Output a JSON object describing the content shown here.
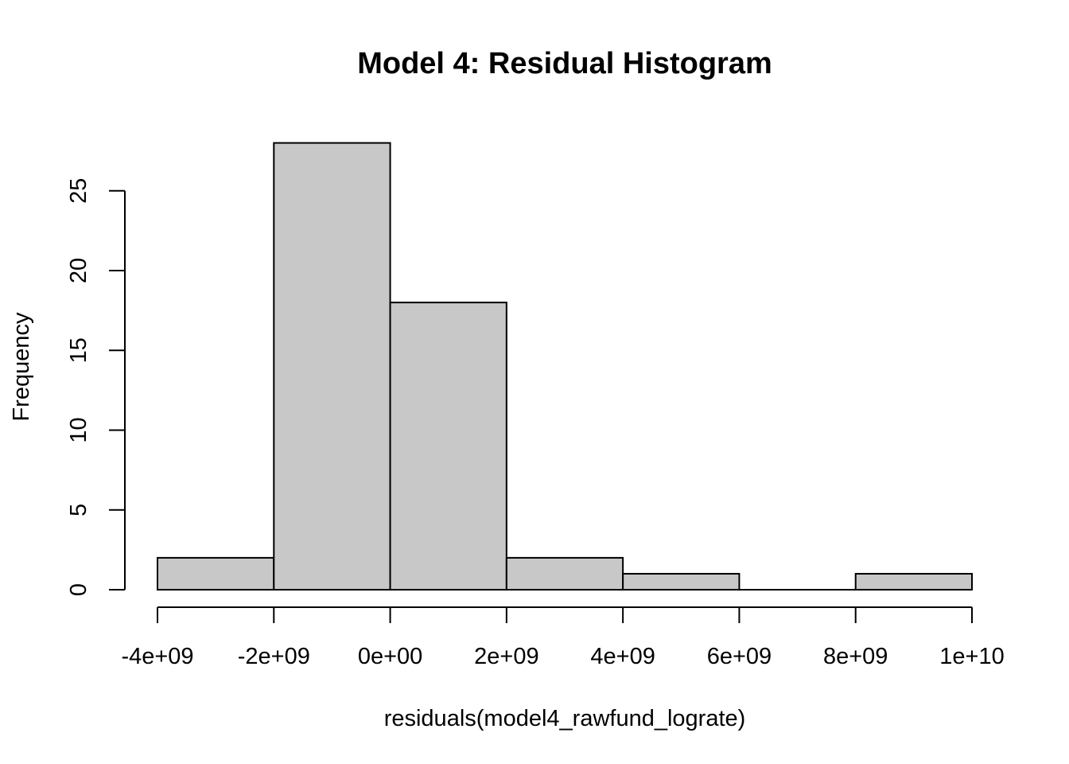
{
  "chart_data": {
    "type": "bar",
    "subtype": "histogram",
    "title": "Model 4: Residual Histogram",
    "xlabel": "residuals(model4_rawfund_lograte)",
    "ylabel": "Frequency",
    "bins": [
      {
        "from": -4000000000,
        "to": -2000000000,
        "count": 2
      },
      {
        "from": -2000000000,
        "to": 0,
        "count": 28
      },
      {
        "from": 0,
        "to": 2000000000,
        "count": 18
      },
      {
        "from": 2000000000,
        "to": 4000000000,
        "count": 2
      },
      {
        "from": 4000000000,
        "to": 6000000000,
        "count": 1
      },
      {
        "from": 6000000000,
        "to": 8000000000,
        "count": 0
      },
      {
        "from": 8000000000,
        "to": 10000000000,
        "count": 1
      }
    ],
    "x_ticks": [
      {
        "value": -4000000000,
        "label": "-4e+09"
      },
      {
        "value": -2000000000,
        "label": "-2e+09"
      },
      {
        "value": 0,
        "label": "0e+00"
      },
      {
        "value": 2000000000,
        "label": "2e+09"
      },
      {
        "value": 4000000000,
        "label": "4e+09"
      },
      {
        "value": 6000000000,
        "label": "6e+09"
      },
      {
        "value": 8000000000,
        "label": "8e+09"
      },
      {
        "value": 10000000000,
        "label": "1e+10"
      }
    ],
    "y_ticks": [
      {
        "value": 0,
        "label": "0"
      },
      {
        "value": 5,
        "label": "5"
      },
      {
        "value": 10,
        "label": "10"
      },
      {
        "value": 15,
        "label": "15"
      },
      {
        "value": 20,
        "label": "20"
      },
      {
        "value": 25,
        "label": "25"
      }
    ],
    "xlim": [
      -4000000000,
      10000000000
    ],
    "ylim": [
      0,
      28
    ],
    "grid": false,
    "legend": "none",
    "bar_fill": "#c8c8c8",
    "bar_stroke": "#000000"
  }
}
